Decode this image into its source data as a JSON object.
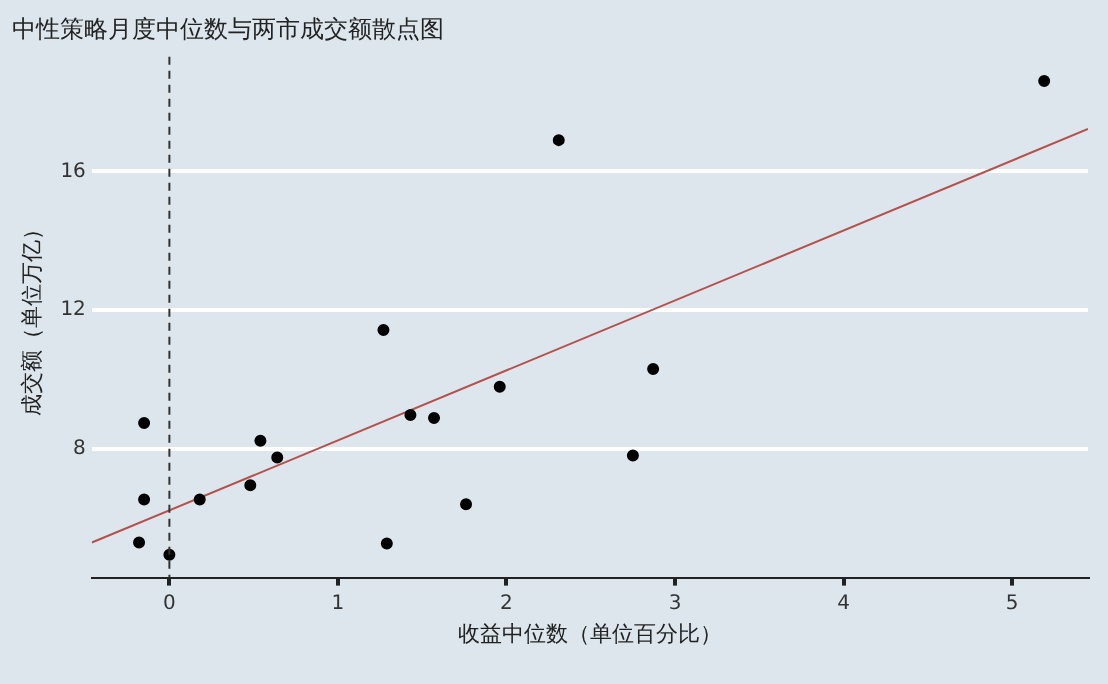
{
  "chart_data": {
    "type": "scatter",
    "title": "中性策略月度中位数与两市成交额散点图",
    "xlabel": "收益中位数（单位百分比）",
    "ylabel": "成交额（单位万亿）",
    "xlim": [
      -0.46,
      5.45
    ],
    "ylim": [
      4.3,
      19.3
    ],
    "xticks": [
      0,
      1,
      2,
      3,
      4,
      5
    ],
    "yticks": [
      8,
      12,
      16
    ],
    "grid": "y",
    "marker": "circle",
    "legend": false,
    "ref_lines": [
      {
        "axis": "x",
        "value": 0,
        "color": "#333333",
        "line_style": "dashed"
      }
    ],
    "series": [
      {
        "color": "#000000",
        "x": [
          -0.18,
          -0.15,
          -0.15,
          0.0,
          0.18,
          0.48,
          0.54,
          0.64,
          1.27,
          1.29,
          1.43,
          1.57,
          1.76,
          1.96,
          2.31,
          2.87,
          2.75,
          5.19
        ],
        "values": [
          5.31,
          8.75,
          6.55,
          4.96,
          6.55,
          6.96,
          8.24,
          7.76,
          11.43,
          5.28,
          8.98,
          8.9,
          6.41,
          9.8,
          16.9,
          10.31,
          7.82,
          18.6
        ]
      },
      {
        "type": "line",
        "marker": "none",
        "color": "#b5504b",
        "x": [
          -0.46,
          5.45
        ],
        "values": [
          5.31,
          17.22
        ]
      }
    ]
  }
}
